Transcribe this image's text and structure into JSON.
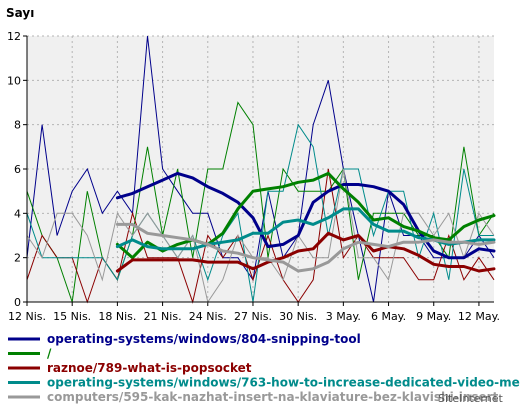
{
  "chart_data": {
    "type": "line",
    "ylabel": "Sayı",
    "xlabel": "",
    "ylim": [
      0,
      12
    ],
    "yticks": [
      "0",
      "2",
      "4",
      "6",
      "8",
      "10",
      "12"
    ],
    "xtick_labels": [
      "12 Nis.",
      "15 Nis.",
      "18 Nis.",
      "21 Nis.",
      "24 Nis.",
      "27 Nis.",
      "30 Nis.",
      "3 May.",
      "6 May.",
      "9 May.",
      "12 May."
    ],
    "grid": true,
    "legend_position": "bottom",
    "watermark": "SiteInternet",
    "x": [
      "12 Nis.",
      "13 Nis.",
      "14 Nis.",
      "15 Nis.",
      "16 Nis.",
      "17 Nis.",
      "18 Nis.",
      "19 Nis.",
      "20 Nis.",
      "21 Nis.",
      "22 Nis.",
      "23 Nis.",
      "24 Nis.",
      "25 Nis.",
      "26 Nis.",
      "27 Nis.",
      "28 Nis.",
      "29 Nis.",
      "30 Nis.",
      "1 May.",
      "2 May.",
      "3 May.",
      "4 May.",
      "5 May.",
      "6 May.",
      "7 May.",
      "8 May.",
      "9 May.",
      "10 May.",
      "11 May.",
      "12 May.",
      "13 May."
    ],
    "series": [
      {
        "name": "operating-systems/windows/804-snipping-tool",
        "color": "#00008b",
        "values": [
          2,
          8,
          3,
          5,
          6,
          4,
          5,
          4,
          12,
          6,
          5,
          4,
          4,
          2,
          2,
          1,
          5,
          2,
          3,
          8,
          10,
          6,
          3,
          0,
          5,
          3,
          3,
          2,
          2,
          2,
          3,
          2
        ],
        "trend": [
          null,
          null,
          null,
          null,
          null,
          null,
          4.7,
          4.9,
          5.2,
          5.5,
          5.8,
          5.6,
          5.2,
          4.9,
          4.5,
          3.8,
          2.5,
          2.6,
          3.0,
          4.5,
          5.0,
          5.3,
          5.3,
          5.2,
          5.0,
          4.4,
          3.2,
          2.3,
          2.0,
          2.0,
          2.4,
          2.3
        ]
      },
      {
        "name": "/",
        "color": "#008000",
        "values": [
          5,
          3,
          2,
          0,
          5,
          2,
          1,
          3,
          7,
          3,
          6,
          2,
          6,
          6,
          9,
          8,
          2,
          6,
          5,
          5,
          5,
          6,
          1,
          4,
          4,
          4,
          3,
          3,
          2,
          7,
          3,
          4
        ],
        "trend": [
          null,
          null,
          null,
          null,
          null,
          null,
          2.6,
          2.0,
          2.7,
          2.3,
          2.6,
          2.8,
          2.6,
          3.1,
          4.2,
          5.0,
          5.1,
          5.2,
          5.4,
          5.5,
          5.8,
          5.1,
          4.5,
          3.7,
          3.8,
          3.4,
          3.2,
          2.9,
          2.8,
          3.4,
          3.7,
          3.9
        ]
      },
      {
        "name": "raznoe/789-what-is-popsocket",
        "color": "#8b0000",
        "values": [
          1,
          3,
          2,
          2,
          0,
          2,
          1,
          4,
          2,
          2,
          2,
          0,
          3,
          2,
          3,
          1,
          3,
          1,
          0,
          1,
          6,
          2,
          3,
          2,
          2,
          2,
          1,
          1,
          3,
          1,
          2,
          1
        ],
        "trend": [
          null,
          null,
          null,
          null,
          null,
          null,
          1.4,
          1.9,
          1.9,
          1.9,
          1.9,
          1.9,
          1.8,
          1.8,
          1.8,
          1.5,
          1.8,
          2.0,
          2.3,
          2.4,
          3.1,
          2.8,
          3.0,
          2.3,
          2.5,
          2.4,
          2.1,
          1.7,
          1.6,
          1.6,
          1.4,
          1.5
        ]
      },
      {
        "name": "operating-systems/windows/763-how-to-increase-dedicated-video-memory",
        "color": "#008b8b",
        "values": [
          4,
          2,
          2,
          2,
          2,
          2,
          1,
          3,
          4,
          3,
          2,
          3,
          1,
          3,
          4,
          0,
          5,
          5,
          8,
          7,
          3,
          6,
          6,
          3,
          5,
          5,
          2,
          4,
          1,
          6,
          3,
          3
        ],
        "trend": [
          null,
          null,
          null,
          null,
          null,
          null,
          2.5,
          2.8,
          2.5,
          2.4,
          2.4,
          2.4,
          2.6,
          2.7,
          2.8,
          3.1,
          3.1,
          3.6,
          3.7,
          3.5,
          3.8,
          4.2,
          4.2,
          3.5,
          3.2,
          3.2,
          2.9,
          2.8,
          2.6,
          2.7,
          2.8,
          2.8
        ]
      },
      {
        "name": "computers/595-kak-nazhat-insert-na-klaviature-bez-klavishi-insert",
        "color": "#999999",
        "values": [
          3,
          2,
          4,
          4,
          3,
          1,
          4,
          3,
          4,
          3,
          2,
          3,
          0,
          1,
          3,
          2,
          2,
          1,
          3,
          2,
          2,
          6,
          2,
          2,
          1,
          4,
          4,
          3,
          4,
          2,
          4,
          3
        ],
        "trend": [
          null,
          null,
          null,
          null,
          null,
          null,
          3.5,
          3.5,
          3.1,
          3.0,
          2.9,
          2.8,
          2.6,
          2.3,
          2.2,
          2.0,
          1.9,
          1.8,
          1.4,
          1.5,
          1.8,
          2.4,
          2.7,
          2.6,
          2.5,
          2.7,
          2.7,
          2.8,
          2.7,
          2.7,
          2.6,
          2.7
        ]
      }
    ]
  }
}
